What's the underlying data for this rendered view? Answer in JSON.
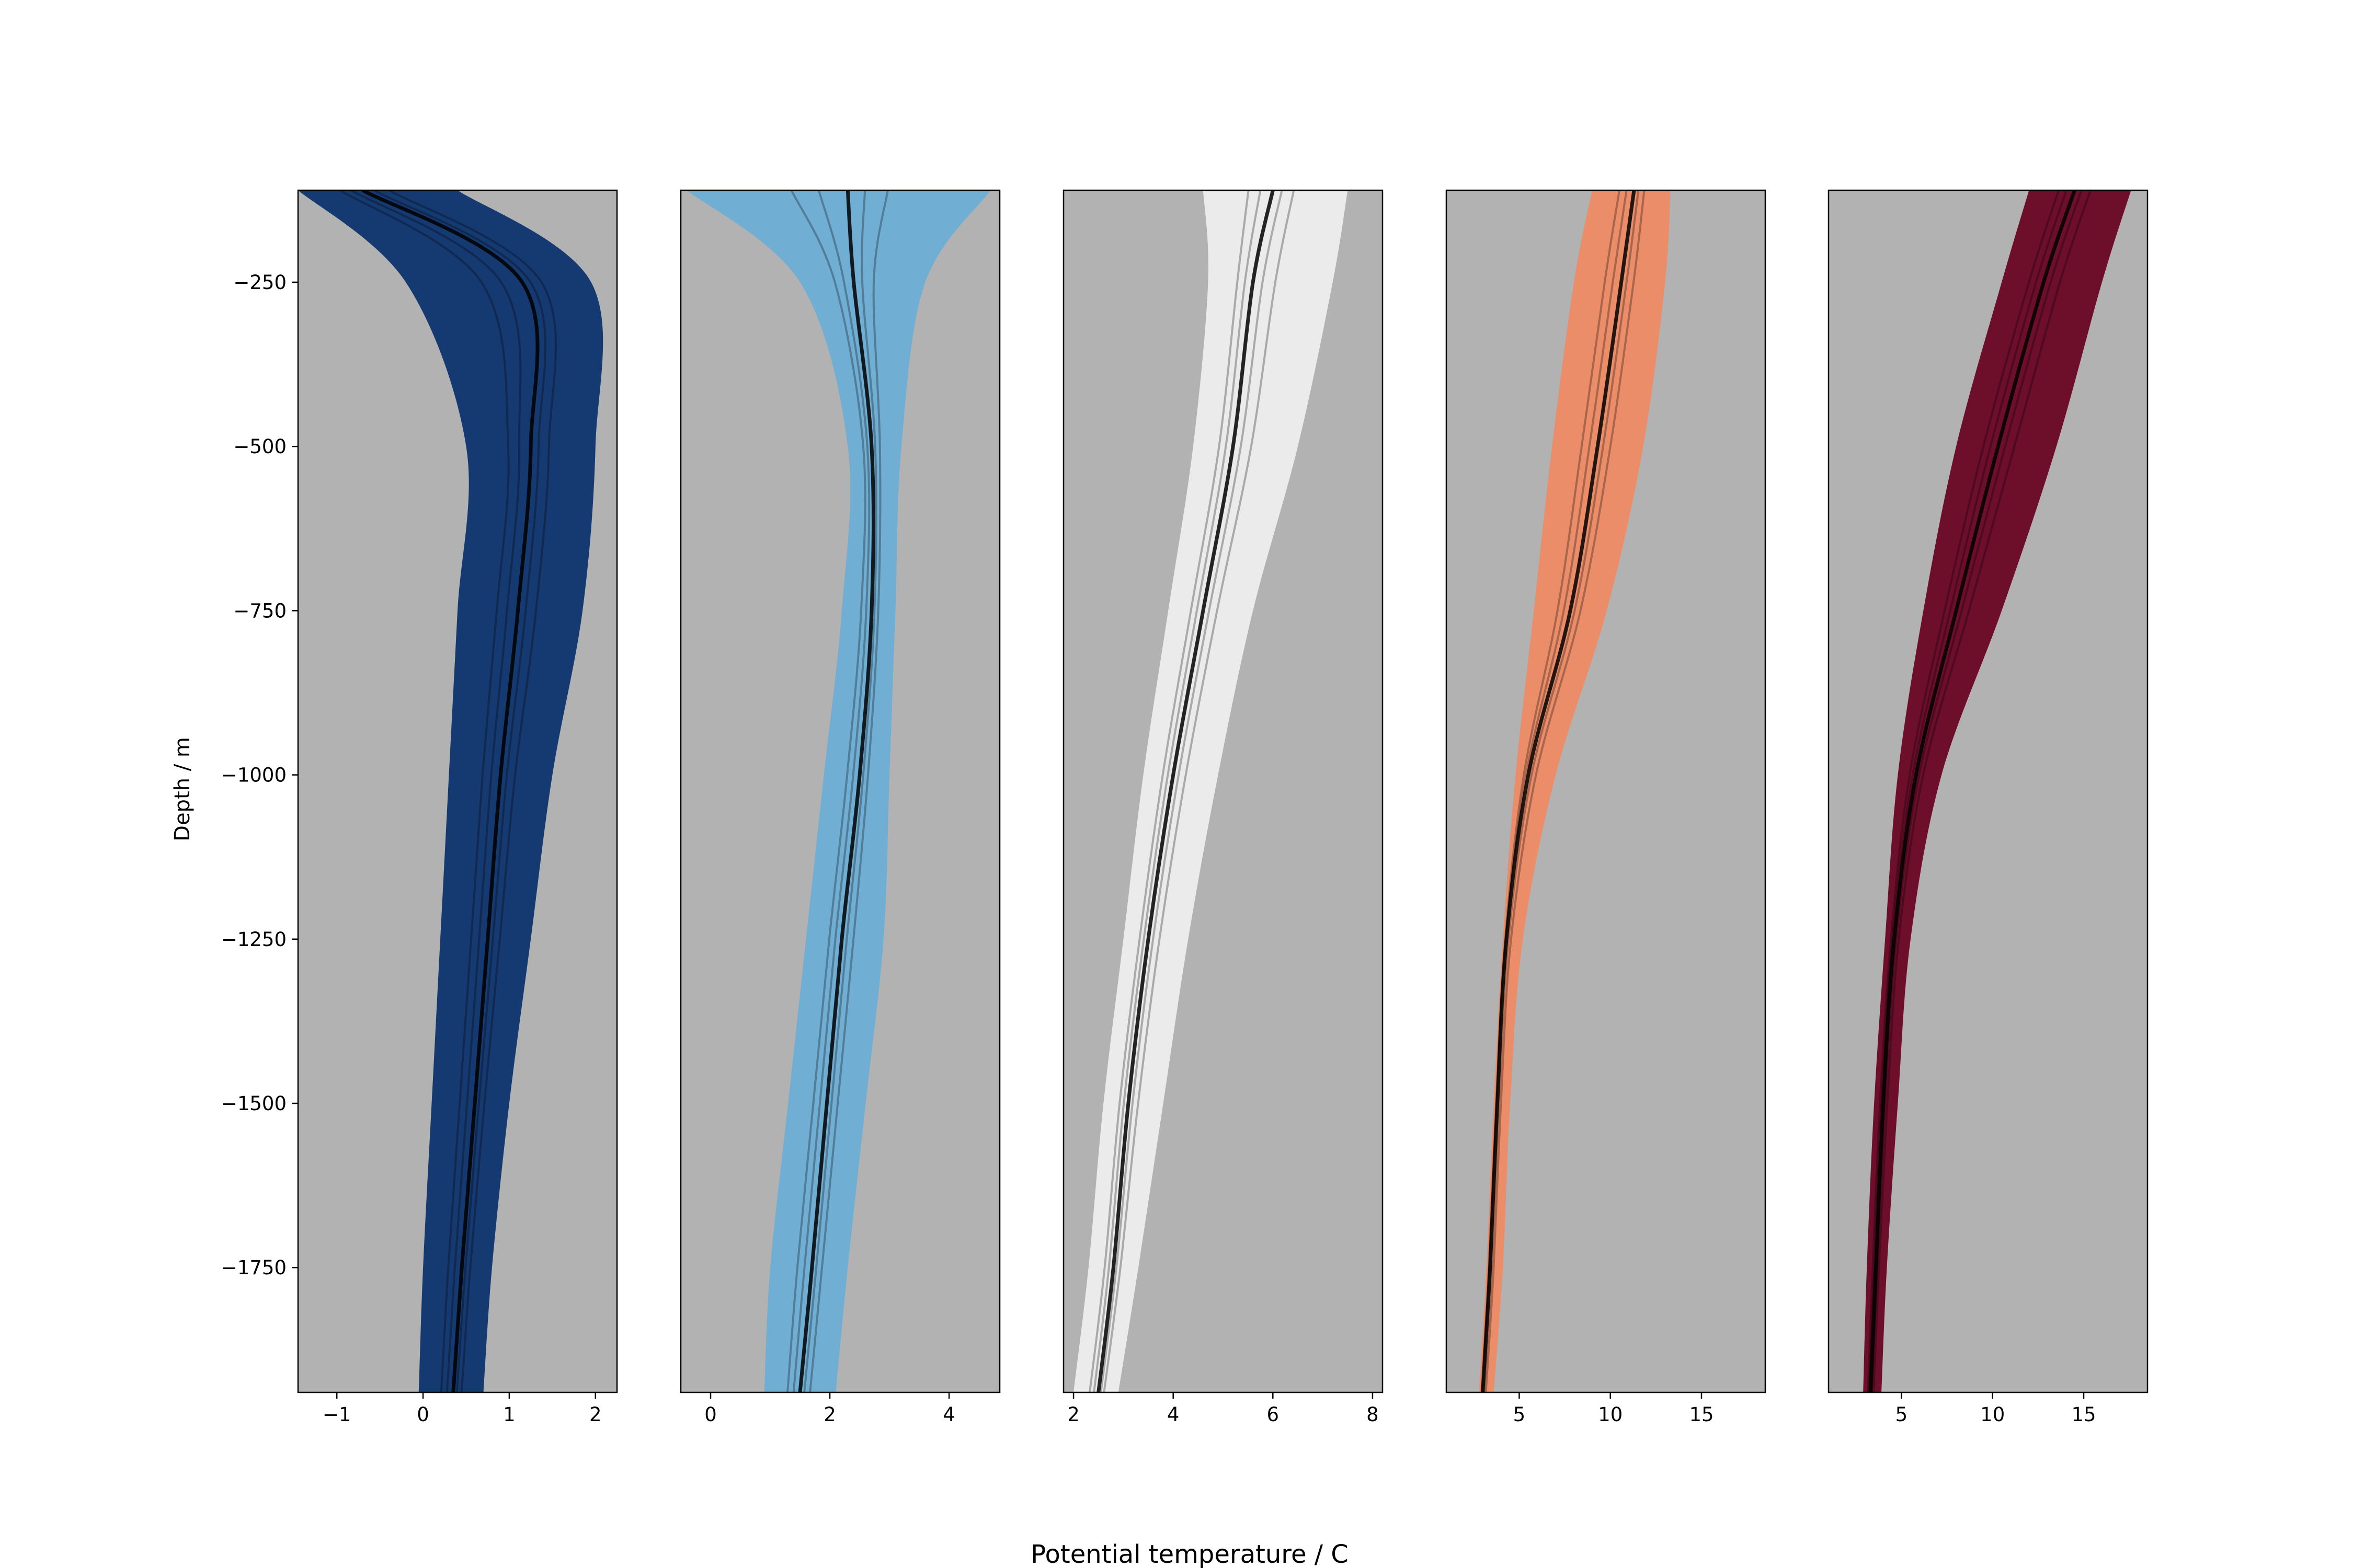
{
  "figure": {
    "xlabel": "Potential temperature / C",
    "ylabel": "Depth / m"
  },
  "chart_data": [
    {
      "type": "line",
      "panel": 1,
      "color": "#08306b",
      "background": "#b2b2b2",
      "xlim": [
        -1.45,
        2.25
      ],
      "ylim": [
        -1940,
        -110
      ],
      "xticks": [
        -1,
        0,
        1,
        2
      ],
      "yticks": [
        -250,
        -500,
        -750,
        -1000,
        -1250,
        -1500,
        -1750
      ],
      "depth": [
        -110,
        -250,
        -500,
        -750,
        -1000,
        -1250,
        -1500,
        -1750,
        -1940
      ],
      "envelope_lower": [
        -1.45,
        -0.2,
        0.5,
        0.4,
        0.3,
        0.2,
        0.1,
        0.0,
        -0.05
      ],
      "envelope_upper": [
        0.4,
        1.95,
        2.0,
        1.85,
        1.5,
        1.25,
        1.0,
        0.8,
        0.7
      ],
      "mean": [
        -0.7,
        1.15,
        1.25,
        1.1,
        0.9,
        0.75,
        0.6,
        0.45,
        0.35
      ]
    },
    {
      "type": "line",
      "panel": 2,
      "color": "#6baed6",
      "background": "#b2b2b2",
      "xlim": [
        -0.5,
        4.85
      ],
      "ylim": [
        -1940,
        -110
      ],
      "xticks": [
        0,
        2,
        4
      ],
      "yticks": [
        -250,
        -500,
        -750,
        -1000,
        -1250,
        -1500,
        -1750
      ],
      "depth": [
        -110,
        -250,
        -500,
        -750,
        -1000,
        -1250,
        -1500,
        -1750,
        -1940
      ],
      "envelope_lower": [
        -0.4,
        1.5,
        2.3,
        2.2,
        1.9,
        1.6,
        1.3,
        1.0,
        0.9
      ],
      "envelope_upper": [
        4.7,
        3.6,
        3.2,
        3.1,
        3.0,
        2.9,
        2.6,
        2.3,
        2.1
      ],
      "mean": [
        2.3,
        2.4,
        2.7,
        2.7,
        2.5,
        2.2,
        1.95,
        1.7,
        1.5
      ]
    },
    {
      "type": "line",
      "panel": 3,
      "color": "#f0f0f0",
      "background": "#b2b2b2",
      "xlim": [
        1.8,
        8.2
      ],
      "ylim": [
        -1940,
        -110
      ],
      "xticks": [
        2,
        4,
        6,
        8
      ],
      "yticks": [
        -250,
        -500,
        -750,
        -1000,
        -1250,
        -1500,
        -1750
      ],
      "depth": [
        -110,
        -250,
        -500,
        -750,
        -1000,
        -1250,
        -1500,
        -1750,
        -1940
      ],
      "envelope_lower": [
        4.6,
        4.7,
        4.4,
        3.9,
        3.4,
        3.0,
        2.6,
        2.3,
        2.0
      ],
      "envelope_upper": [
        7.5,
        7.2,
        6.5,
        5.6,
        4.9,
        4.3,
        3.8,
        3.3,
        2.9
      ],
      "mean": [
        6.0,
        5.6,
        5.2,
        4.6,
        4.0,
        3.5,
        3.1,
        2.8,
        2.5
      ]
    },
    {
      "type": "line",
      "panel": 4,
      "color": "#ef8a62",
      "background": "#b2b2b2",
      "xlim": [
        1.0,
        18.5
      ],
      "ylim": [
        -1940,
        -110
      ],
      "xticks": [
        5,
        10,
        15
      ],
      "yticks": [
        -250,
        -500,
        -750,
        -1000,
        -1250,
        -1500,
        -1750
      ],
      "depth": [
        -110,
        -250,
        -500,
        -750,
        -1000,
        -1250,
        -1500,
        -1750,
        -1940
      ],
      "envelope_lower": [
        9.0,
        8.0,
        6.8,
        5.8,
        4.8,
        4.1,
        3.6,
        3.2,
        2.8
      ],
      "envelope_upper": [
        13.3,
        13.0,
        11.8,
        9.8,
        7.0,
        5.2,
        4.5,
        4.1,
        3.6
      ],
      "mean": [
        11.3,
        10.6,
        9.3,
        7.8,
        5.5,
        4.3,
        3.8,
        3.4,
        3.0
      ]
    },
    {
      "type": "line",
      "panel": 5,
      "color": "#67001f",
      "background": "#b2b2b2",
      "xlim": [
        1.0,
        18.5
      ],
      "ylim": [
        -1940,
        -110
      ],
      "xticks": [
        5,
        10,
        15
      ],
      "yticks": [
        -250,
        -500,
        -750,
        -1000,
        -1250,
        -1500,
        -1750
      ],
      "depth": [
        -110,
        -250,
        -500,
        -750,
        -1000,
        -1250,
        -1500,
        -1750,
        -1940
      ],
      "envelope_lower": [
        12.0,
        10.5,
        8.0,
        6.2,
        4.8,
        4.1,
        3.5,
        3.1,
        2.9
      ],
      "envelope_upper": [
        17.6,
        16.0,
        13.5,
        10.5,
        7.2,
        5.5,
        4.8,
        4.2,
        3.9
      ],
      "mean": [
        14.5,
        12.8,
        10.3,
        8.0,
        5.8,
        4.6,
        4.0,
        3.6,
        3.3
      ]
    }
  ]
}
